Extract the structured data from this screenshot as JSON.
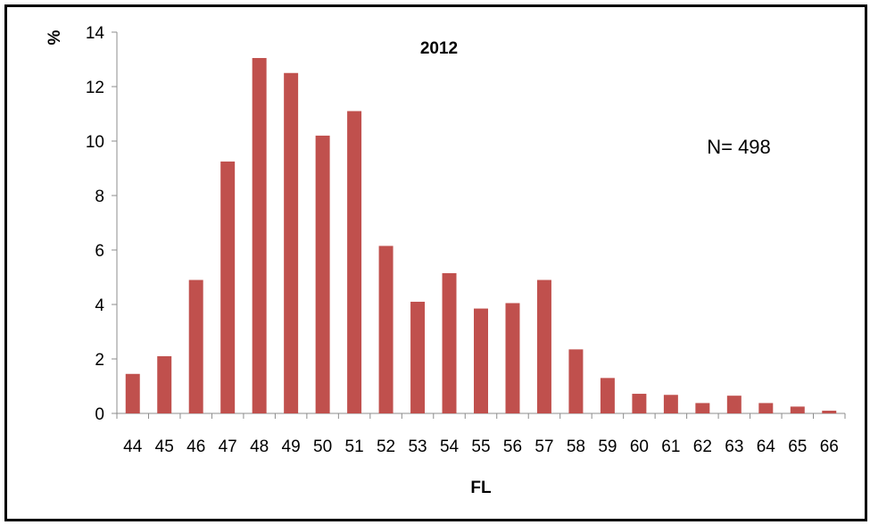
{
  "chart_data": {
    "type": "bar",
    "title": "2012",
    "xlabel": "FL",
    "ylabel": "%",
    "annotation": "N= 498",
    "ylim": [
      0,
      14
    ],
    "yticks": [
      0,
      2,
      4,
      6,
      8,
      10,
      12,
      14
    ],
    "grid": false,
    "legend": "none",
    "bar_color": "#c0504d",
    "categories": [
      "44",
      "45",
      "46",
      "47",
      "48",
      "49",
      "50",
      "51",
      "52",
      "53",
      "54",
      "55",
      "56",
      "57",
      "58",
      "59",
      "60",
      "61",
      "62",
      "63",
      "64",
      "65",
      "66"
    ],
    "values": [
      1.45,
      2.1,
      4.9,
      9.25,
      13.05,
      12.5,
      10.2,
      11.1,
      6.15,
      4.1,
      5.15,
      3.85,
      4.05,
      4.9,
      2.35,
      1.3,
      0.72,
      0.68,
      0.38,
      0.65,
      0.38,
      0.25,
      0.1
    ]
  }
}
